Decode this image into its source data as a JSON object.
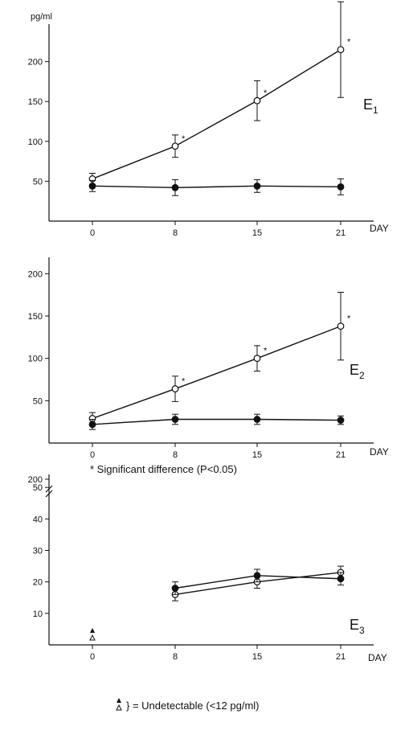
{
  "unit_label": "pg/ml",
  "significance_note": "* Significant difference (P<0.05)",
  "undetectable_note": "} = Undetectable (<12 pg/ml)",
  "colors": {
    "ink": "#111111",
    "open_marker_fill": "#ffffff",
    "filled_marker_fill": "#111111"
  },
  "chart_data": [
    {
      "type": "line",
      "panel_label": "E",
      "panel_sub": "1",
      "xlabel": "DAY",
      "ylabel": "pg/ml",
      "x": [
        0,
        8,
        15,
        21
      ],
      "x_ticks": [
        "0",
        "8",
        "15",
        "21"
      ],
      "y_ticks": [
        50,
        100,
        150,
        200
      ],
      "ylim": [
        0,
        250
      ],
      "grid": false,
      "series": [
        {
          "marker": "open",
          "values": [
            53,
            94,
            151,
            215
          ],
          "errors": [
            7,
            14,
            25,
            60
          ],
          "significant": [
            false,
            true,
            true,
            true
          ]
        },
        {
          "marker": "filled",
          "values": [
            44,
            42,
            44,
            43
          ],
          "errors": [
            7,
            10,
            8,
            10
          ],
          "significant": [
            false,
            false,
            false,
            false
          ]
        }
      ]
    },
    {
      "type": "line",
      "panel_label": "E",
      "panel_sub": "2",
      "xlabel": "DAY",
      "x": [
        0,
        8,
        15,
        21
      ],
      "x_ticks": [
        "0",
        "8",
        "15",
        "21"
      ],
      "y_ticks": [
        50,
        100,
        150,
        200
      ],
      "ylim": [
        0,
        225
      ],
      "grid": false,
      "series": [
        {
          "marker": "open",
          "values": [
            29,
            64,
            100,
            138
          ],
          "errors": [
            7,
            15,
            15,
            40
          ],
          "significant": [
            false,
            true,
            true,
            true
          ]
        },
        {
          "marker": "filled",
          "values": [
            22,
            28,
            28,
            27
          ],
          "errors": [
            6,
            6,
            6,
            5
          ],
          "significant": [
            false,
            false,
            false,
            false
          ]
        }
      ]
    },
    {
      "type": "line",
      "panel_label": "E",
      "panel_sub": "3",
      "xlabel": "DAY",
      "x": [
        0,
        8,
        15,
        21
      ],
      "x_ticks": [
        "0",
        "8",
        "15",
        "21"
      ],
      "y_ticks": [
        10,
        20,
        30,
        40,
        50
      ],
      "y_break_label": "200",
      "ylim": [
        0,
        60
      ],
      "grid": false,
      "series": [
        {
          "marker": "open",
          "values": [
            null,
            16,
            20,
            23
          ],
          "errors": [
            0,
            2,
            2,
            2
          ],
          "significant": [
            false,
            false,
            false,
            false
          ]
        },
        {
          "marker": "filled",
          "values": [
            null,
            18,
            22,
            21
          ],
          "errors": [
            0,
            2,
            2,
            2
          ],
          "significant": [
            false,
            false,
            false,
            false
          ]
        }
      ]
    }
  ]
}
